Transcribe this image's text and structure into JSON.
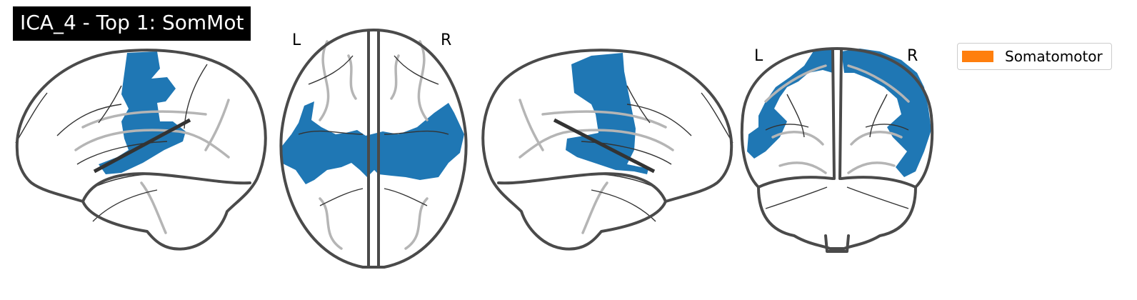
{
  "title": "ICA_4 - Top 1: SomMot",
  "views": {
    "sagittal_left": {
      "name": "sagittal-left"
    },
    "axial": {
      "left_label": "L",
      "right_label": "R"
    },
    "sagittal_right": {
      "name": "sagittal-right"
    },
    "coronal": {
      "left_label": "L",
      "right_label": "R"
    }
  },
  "overlay_color": "#1f77b4",
  "legend": {
    "label": "Somatomotor",
    "color": "#ff7f0e"
  }
}
